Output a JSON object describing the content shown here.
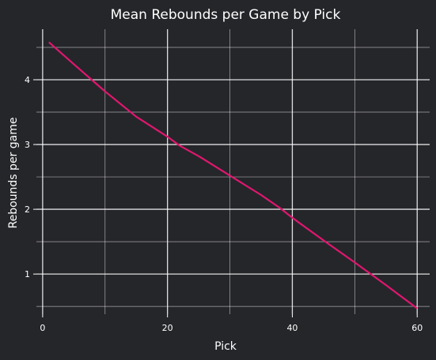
{
  "chart_data": {
    "type": "line",
    "title": "Mean Rebounds per Game by Pick",
    "xlabel": "Pick",
    "ylabel": "Rebounds per game",
    "xlim": [
      -1,
      62
    ],
    "ylim": [
      0.38,
      4.78
    ],
    "x_major_ticks": [
      0,
      20,
      40,
      60
    ],
    "x_minor_ticks": [
      10,
      30,
      50
    ],
    "y_major_ticks": [
      1,
      2,
      3,
      4
    ],
    "y_minor_ticks": [
      0.5,
      1.5,
      2.5,
      3.5,
      4.5
    ],
    "grid": true,
    "line_color": "#e0176f",
    "background_color": "#25262a",
    "series": [
      {
        "x": [
          1,
          5,
          10,
          15,
          20,
          22,
          25,
          30,
          35,
          38,
          40,
          45,
          50,
          55,
          60
        ],
        "values": [
          4.58,
          4.24,
          3.82,
          3.43,
          3.12,
          2.98,
          2.82,
          2.52,
          2.22,
          2.02,
          1.87,
          1.52,
          1.18,
          0.83,
          0.47
        ]
      }
    ]
  }
}
